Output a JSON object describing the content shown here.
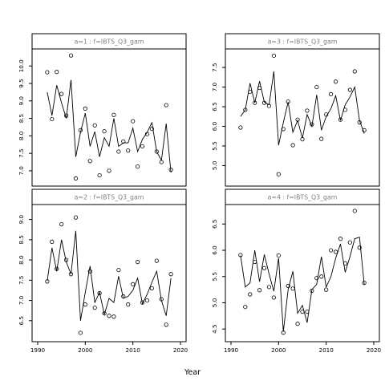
{
  "chart_data": {
    "type": "line",
    "xlabel": "Year",
    "xlim": [
      1990,
      2020
    ],
    "xticks": [
      1990,
      2000,
      2010,
      2020
    ],
    "panels": [
      {
        "label": "a=1  :  f=IBTS_Q3_gam",
        "ylim": [
          6.7,
          10.35
        ],
        "yticks": [
          7.0,
          7.5,
          8.0,
          8.5,
          9.0,
          9.5,
          10.0
        ],
        "points": {
          "x": [
            1992,
            1993,
            1994,
            1995,
            1996,
            1997,
            1998,
            1999,
            2000,
            2001,
            2002,
            2003,
            2004,
            2005,
            2006,
            2007,
            2008,
            2009,
            2010,
            2011,
            2012,
            2013,
            2014,
            2015,
            2016,
            2017,
            2018
          ],
          "y": [
            9.82,
            8.48,
            9.83,
            9.2,
            8.58,
            10.3,
            6.78,
            8.16,
            8.78,
            7.28,
            8.3,
            6.87,
            8.13,
            7.0,
            8.6,
            7.55,
            7.84,
            7.58,
            8.42,
            7.12,
            7.7,
            8.05,
            8.2,
            7.55,
            7.25,
            8.88,
            7.03
          ]
        },
        "fit": {
          "x": [
            1992,
            1993,
            1994,
            1995,
            1996,
            1997,
            1998,
            1999,
            2000,
            2001,
            2002,
            2003,
            2004,
            2005,
            2006,
            2007,
            2008,
            2009,
            2010,
            2011,
            2012,
            2013,
            2014,
            2015,
            2016,
            2017,
            2018
          ],
          "y": [
            9.25,
            8.58,
            9.45,
            8.95,
            8.5,
            9.6,
            7.4,
            8.1,
            8.65,
            7.7,
            8.12,
            7.4,
            7.95,
            7.7,
            8.5,
            7.7,
            7.8,
            7.8,
            8.22,
            7.55,
            7.9,
            8.1,
            8.38,
            7.55,
            7.3,
            8.35,
            6.95
          ]
        }
      },
      {
        "label": "a=3  :  f=IBTS_Q3_gam",
        "ylim": [
          4.6,
          7.85
        ],
        "yticks": [
          5.0,
          5.5,
          6.0,
          6.5,
          7.0,
          7.5
        ],
        "points": {
          "x": [
            1992,
            1993,
            1994,
            1995,
            1996,
            1997,
            1998,
            1999,
            2000,
            2001,
            2002,
            2003,
            2004,
            2005,
            2006,
            2007,
            2008,
            2009,
            2010,
            2011,
            2012,
            2013,
            2014,
            2015,
            2016,
            2017,
            2018
          ],
          "y": [
            5.97,
            6.42,
            6.88,
            6.6,
            6.98,
            6.6,
            6.52,
            7.8,
            4.78,
            5.93,
            6.63,
            5.52,
            6.17,
            5.67,
            6.4,
            6.05,
            7.0,
            5.68,
            6.3,
            6.82,
            7.14,
            6.17,
            6.42,
            6.93,
            7.4,
            6.1,
            5.9
          ]
        },
        "fit": {
          "x": [
            1992,
            1993,
            1994,
            1995,
            1996,
            1997,
            1998,
            1999,
            2000,
            2001,
            2002,
            2003,
            2004,
            2005,
            2006,
            2007,
            2008,
            2009,
            2010,
            2011,
            2012,
            2013,
            2014,
            2015,
            2016,
            2017,
            2018
          ],
          "y": [
            6.25,
            6.42,
            7.1,
            6.6,
            7.15,
            6.62,
            6.55,
            7.4,
            5.52,
            6.1,
            6.62,
            5.85,
            6.15,
            5.7,
            6.3,
            6.0,
            6.8,
            5.9,
            6.25,
            6.45,
            6.78,
            6.15,
            6.55,
            6.75,
            7.0,
            6.15,
            5.82
          ]
        }
      },
      {
        "label": "a=2  :  f=IBTS_Q3_gam",
        "ylim": [
          6.1,
          9.25
        ],
        "yticks": [
          6.5,
          7.0,
          7.5,
          8.0,
          8.5,
          9.0
        ],
        "points": {
          "x": [
            1992,
            1993,
            1994,
            1995,
            1996,
            1997,
            1998,
            1999,
            2000,
            2001,
            2002,
            2003,
            2004,
            2005,
            2006,
            2007,
            2008,
            2009,
            2010,
            2011,
            2012,
            2013,
            2014,
            2015,
            2016,
            2017,
            2018
          ],
          "y": [
            7.47,
            8.45,
            7.78,
            8.88,
            8.0,
            7.65,
            9.05,
            6.2,
            6.9,
            7.72,
            6.82,
            7.18,
            6.68,
            6.62,
            6.6,
            7.75,
            7.1,
            6.9,
            7.4,
            7.95,
            6.95,
            7.0,
            7.3,
            7.98,
            7.03,
            6.4,
            7.65
          ]
        },
        "fit": {
          "x": [
            1992,
            1993,
            1994,
            1995,
            1996,
            1997,
            1998,
            1999,
            2000,
            2001,
            2002,
            2003,
            2004,
            2005,
            2006,
            2007,
            2008,
            2009,
            2010,
            2011,
            2012,
            2013,
            2014,
            2015,
            2016,
            2017,
            2018
          ],
          "y": [
            7.48,
            8.3,
            7.72,
            8.5,
            7.95,
            7.65,
            8.72,
            6.5,
            7.2,
            7.85,
            6.95,
            7.2,
            6.65,
            7.05,
            6.95,
            7.6,
            7.05,
            7.1,
            7.25,
            7.55,
            6.92,
            7.15,
            7.45,
            7.72,
            7.0,
            6.62,
            7.55
          ]
        }
      },
      {
        "label": "a=4  :  f=IBTS_Q3_gam",
        "ylim": [
          4.35,
          6.78
        ],
        "yticks": [
          4.5,
          5.0,
          5.5,
          6.0,
          6.5
        ],
        "points": {
          "x": [
            1992,
            1993,
            1994,
            1995,
            1996,
            1997,
            1998,
            1999,
            2000,
            2001,
            2002,
            2003,
            2004,
            2005,
            2006,
            2007,
            2008,
            2009,
            2010,
            2011,
            2012,
            2013,
            2014,
            2015,
            2016,
            2017,
            2018
          ],
          "y": [
            5.91,
            4.92,
            5.16,
            5.78,
            5.24,
            5.66,
            5.3,
            5.1,
            5.9,
            4.43,
            5.32,
            5.27,
            4.6,
            4.83,
            4.83,
            5.23,
            5.47,
            5.5,
            5.25,
            6.0,
            5.97,
            6.22,
            5.75,
            6.15,
            6.75,
            6.05,
            5.38
          ]
        },
        "fit": {
          "x": [
            1992,
            1993,
            1994,
            1995,
            1996,
            1997,
            1998,
            1999,
            2000,
            2001,
            2002,
            2003,
            2004,
            2005,
            2006,
            2007,
            2008,
            2009,
            2010,
            2011,
            2012,
            2013,
            2014,
            2015,
            2016,
            2017,
            2018
          ],
          "y": [
            5.9,
            5.3,
            5.38,
            6.0,
            5.4,
            5.92,
            5.55,
            5.22,
            5.85,
            4.45,
            5.25,
            5.6,
            4.8,
            4.95,
            4.62,
            5.25,
            5.35,
            5.88,
            5.3,
            5.5,
            5.85,
            6.12,
            5.58,
            5.88,
            6.22,
            6.25,
            5.35
          ]
        }
      }
    ]
  }
}
